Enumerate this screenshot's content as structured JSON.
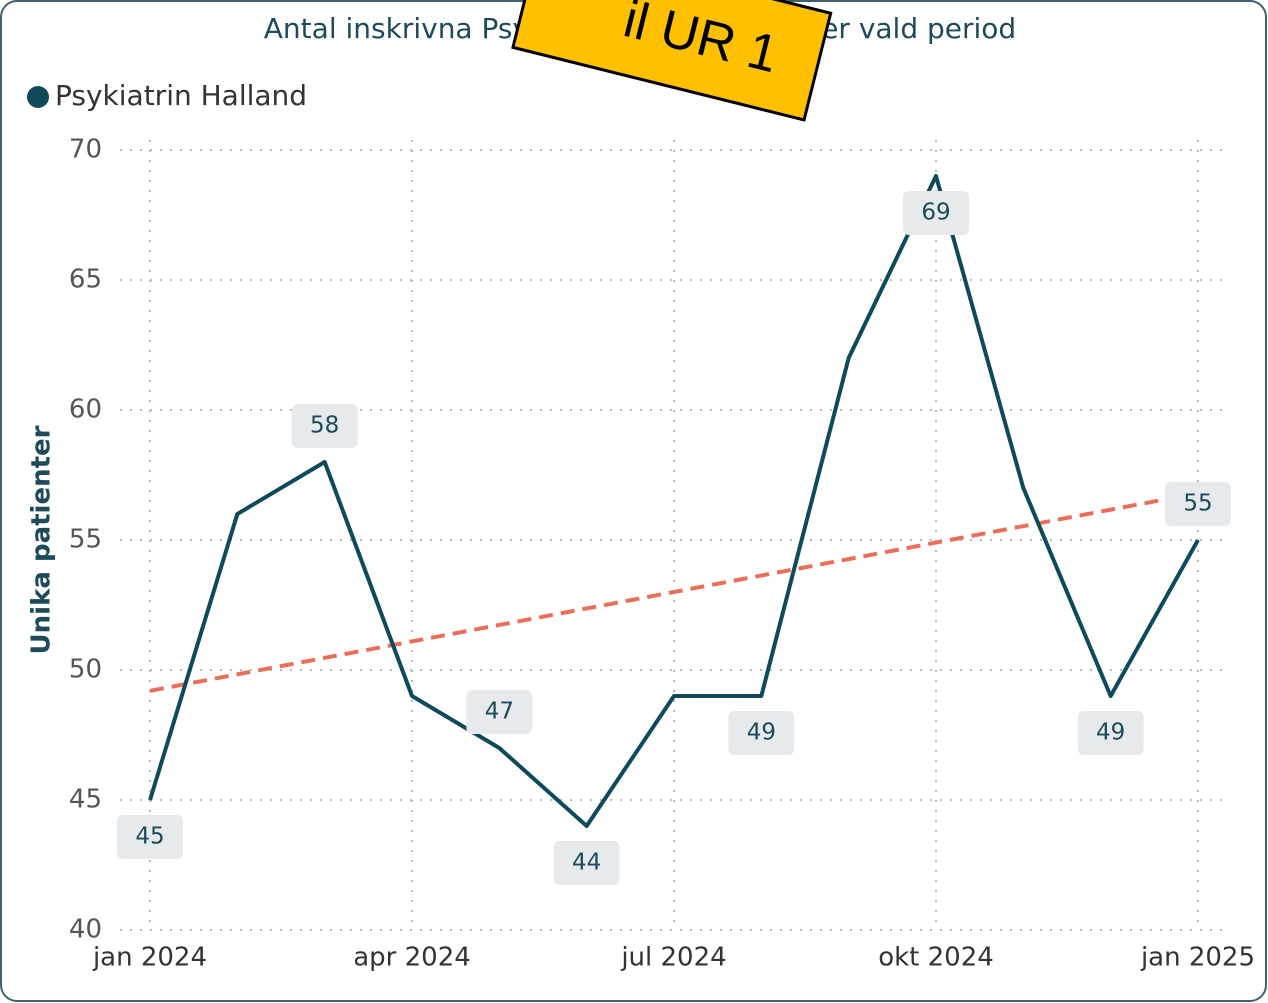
{
  "chart_data": {
    "type": "line",
    "title_parts": [
      "Antal inskrivna Psykiat",
      "er vald period"
    ],
    "sticker": "il UR 1",
    "y_label": "Unika patienter",
    "categories": [
      "jan 2024",
      null,
      null,
      "apr 2024",
      null,
      null,
      "jul 2024",
      null,
      null,
      "okt 2024",
      null,
      null,
      "jan 2025"
    ],
    "series": [
      {
        "name": "Psykiatrin Halland",
        "color": "#0f4a5a",
        "values": [
          45,
          56,
          58,
          49,
          47,
          44,
          49,
          49,
          62,
          69,
          57,
          49,
          55
        ],
        "value_labels": [
          "45",
          null,
          "58",
          null,
          "47",
          "44",
          null,
          "49",
          null,
          "69",
          null,
          "49",
          "55"
        ]
      }
    ],
    "trendline": {
      "color": "#e8705a",
      "values": [
        49.2,
        56.8
      ]
    },
    "ylim": [
      40,
      70
    ],
    "yticks": [
      40,
      45,
      50,
      55,
      60,
      65,
      70
    ],
    "grid": true,
    "legend": "top-left"
  }
}
